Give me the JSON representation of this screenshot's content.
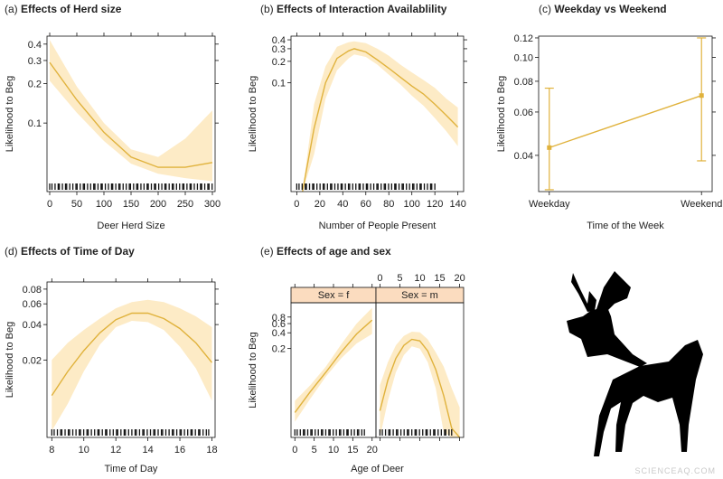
{
  "watermark": "SCIENCEAQ.COM",
  "colors": {
    "line": "#e0b23c",
    "band": "#fdebc6",
    "axis": "#111111",
    "strip": "#fbdcbf"
  },
  "chart_data": [
    {
      "id": "a",
      "type": "line",
      "prefix": "(a)",
      "title": "Effects of Herd size",
      "xlabel": "Deer Herd Size",
      "ylabel": "Likelihood to Beg",
      "ylog": true,
      "xlim": [
        -5,
        305
      ],
      "ylim": [
        0.03,
        0.46
      ],
      "xticks": [
        0,
        50,
        100,
        150,
        200,
        250,
        300
      ],
      "yticks": [
        0.1,
        0.2,
        0.3,
        0.4
      ],
      "yticklabels": [
        "0.1",
        "0.2",
        "0.3",
        "0.4"
      ],
      "series": [
        {
          "x": [
            0,
            50,
            100,
            150,
            200,
            250,
            300
          ],
          "y": [
            0.29,
            0.15,
            0.085,
            0.055,
            0.046,
            0.046,
            0.05
          ],
          "lower": [
            0.21,
            0.12,
            0.073,
            0.049,
            0.041,
            0.038,
            0.036
          ],
          "upper": [
            0.43,
            0.19,
            0.1,
            0.063,
            0.055,
            0.076,
            0.125
          ]
        }
      ],
      "rug": {
        "min": 0,
        "max": 300,
        "count": 65
      }
    },
    {
      "id": "b",
      "type": "line",
      "prefix": "(b)",
      "title": "Effects of Interaction Availablility",
      "xlabel": "Number of People Present",
      "ylabel": "Likelihood to Beg",
      "ylog": true,
      "xlim": [
        -5,
        145
      ],
      "ylim": [
        0.003,
        0.45
      ],
      "xticks": [
        0,
        20,
        40,
        60,
        80,
        100,
        120,
        140
      ],
      "yticks": [
        0.1,
        0.2,
        0.3,
        0.4
      ],
      "yticklabels": [
        "0.1",
        "0.2",
        "0.3",
        "0.4"
      ],
      "series": [
        {
          "x": [
            5,
            15,
            25,
            35,
            45,
            50,
            60,
            70,
            80,
            90,
            100,
            110,
            120,
            130,
            140
          ],
          "y": [
            0.003,
            0.023,
            0.1,
            0.22,
            0.28,
            0.3,
            0.27,
            0.21,
            0.16,
            0.12,
            0.09,
            0.07,
            0.05,
            0.035,
            0.024
          ],
          "lower": [
            0.003,
            0.01,
            0.06,
            0.15,
            0.22,
            0.25,
            0.23,
            0.18,
            0.13,
            0.095,
            0.066,
            0.048,
            0.032,
            0.021,
            0.013
          ],
          "upper": [
            0.003,
            0.05,
            0.17,
            0.32,
            0.37,
            0.38,
            0.36,
            0.3,
            0.24,
            0.18,
            0.14,
            0.11,
            0.085,
            0.06,
            0.045
          ]
        }
      ],
      "rug": {
        "min": 0,
        "max": 120,
        "count": 55
      }
    },
    {
      "id": "c",
      "type": "line",
      "prefix": "(c)",
      "title": "Weekday vs Weekend",
      "xlabel": "Time of the Week",
      "ylabel": "Likelihood to Beg",
      "ylog": true,
      "xlim": [
        -0.07,
        1.07
      ],
      "ylim": [
        0.0285,
        0.122
      ],
      "categories": [
        "Weekday",
        "Weekend"
      ],
      "yticks": [
        0.04,
        0.06,
        0.08,
        0.1,
        0.12
      ],
      "yticklabels": [
        "0.04",
        "0.06",
        "0.08",
        "0.10",
        "0.12"
      ],
      "points": [
        {
          "x": 0,
          "y": 0.043,
          "lower": 0.029,
          "upper": 0.075
        },
        {
          "x": 1,
          "y": 0.07,
          "lower": 0.038,
          "upper": 0.12
        }
      ]
    },
    {
      "id": "d",
      "type": "line",
      "prefix": "(d)",
      "title": "Effects of Time of Day",
      "xlabel": "Time of Day",
      "ylabel": "Likelihood to Beg",
      "ylog": true,
      "xlim": [
        7.7,
        18.2
      ],
      "ylim": [
        0.0044,
        0.092
      ],
      "xticks": [
        8,
        10,
        12,
        14,
        16,
        18
      ],
      "yticks": [
        0.02,
        0.04,
        0.06,
        0.08
      ],
      "yticklabels": [
        "0.02",
        "0.04",
        "0.06",
        "0.08"
      ],
      "series": [
        {
          "x": [
            8,
            9,
            10,
            11,
            12,
            13,
            14,
            15,
            16,
            17,
            18
          ],
          "y": [
            0.01,
            0.016,
            0.024,
            0.034,
            0.044,
            0.05,
            0.05,
            0.045,
            0.037,
            0.028,
            0.019
          ],
          "lower": [
            0.005,
            0.0085,
            0.016,
            0.027,
            0.038,
            0.043,
            0.042,
            0.036,
            0.026,
            0.017,
            0.009
          ],
          "upper": [
            0.02,
            0.028,
            0.036,
            0.045,
            0.055,
            0.062,
            0.065,
            0.062,
            0.055,
            0.047,
            0.038
          ]
        }
      ],
      "rug": {
        "min": 8,
        "max": 17.8,
        "count": 60
      }
    },
    {
      "id": "e",
      "type": "line",
      "prefix": "(e)",
      "title": "Effects of age and sex",
      "xlabel": "Age of Deer",
      "ylabel": "Likelihood to Beg",
      "ylog": true,
      "xlim": [
        -1,
        21
      ],
      "ylim": [
        0.004,
        1.5
      ],
      "xticks": [
        0,
        5,
        10,
        15,
        20
      ],
      "yticks": [
        0.2,
        0.4,
        0.6,
        0.8
      ],
      "yticklabels": [
        "0.2",
        "0.4",
        "0.6",
        "0.8"
      ],
      "panels": [
        {
          "strip": "Sex = f",
          "x": [
            0,
            4,
            8,
            12,
            16,
            20
          ],
          "y": [
            0.012,
            0.03,
            0.07,
            0.17,
            0.38,
            0.7
          ],
          "lower": [
            0.008,
            0.022,
            0.058,
            0.13,
            0.25,
            0.38
          ],
          "upper": [
            0.02,
            0.04,
            0.09,
            0.24,
            0.6,
            1.2
          ],
          "rug": {
            "min": 0,
            "max": 18,
            "count": 28
          }
        },
        {
          "strip": "Sex = m",
          "x": [
            0,
            2,
            4,
            6,
            8,
            10,
            12,
            14,
            16,
            18,
            20
          ],
          "y": [
            0.013,
            0.05,
            0.13,
            0.23,
            0.3,
            0.28,
            0.18,
            0.08,
            0.025,
            0.006,
            0.004
          ],
          "lower": [
            0.004,
            0.02,
            0.07,
            0.15,
            0.22,
            0.2,
            0.11,
            0.035,
            0.005,
            0.004,
            0.004
          ],
          "upper": [
            0.04,
            0.11,
            0.23,
            0.35,
            0.42,
            0.41,
            0.3,
            0.17,
            0.09,
            0.035,
            0.015
          ],
          "rug": {
            "min": 0,
            "max": 18,
            "count": 28
          }
        }
      ]
    }
  ]
}
